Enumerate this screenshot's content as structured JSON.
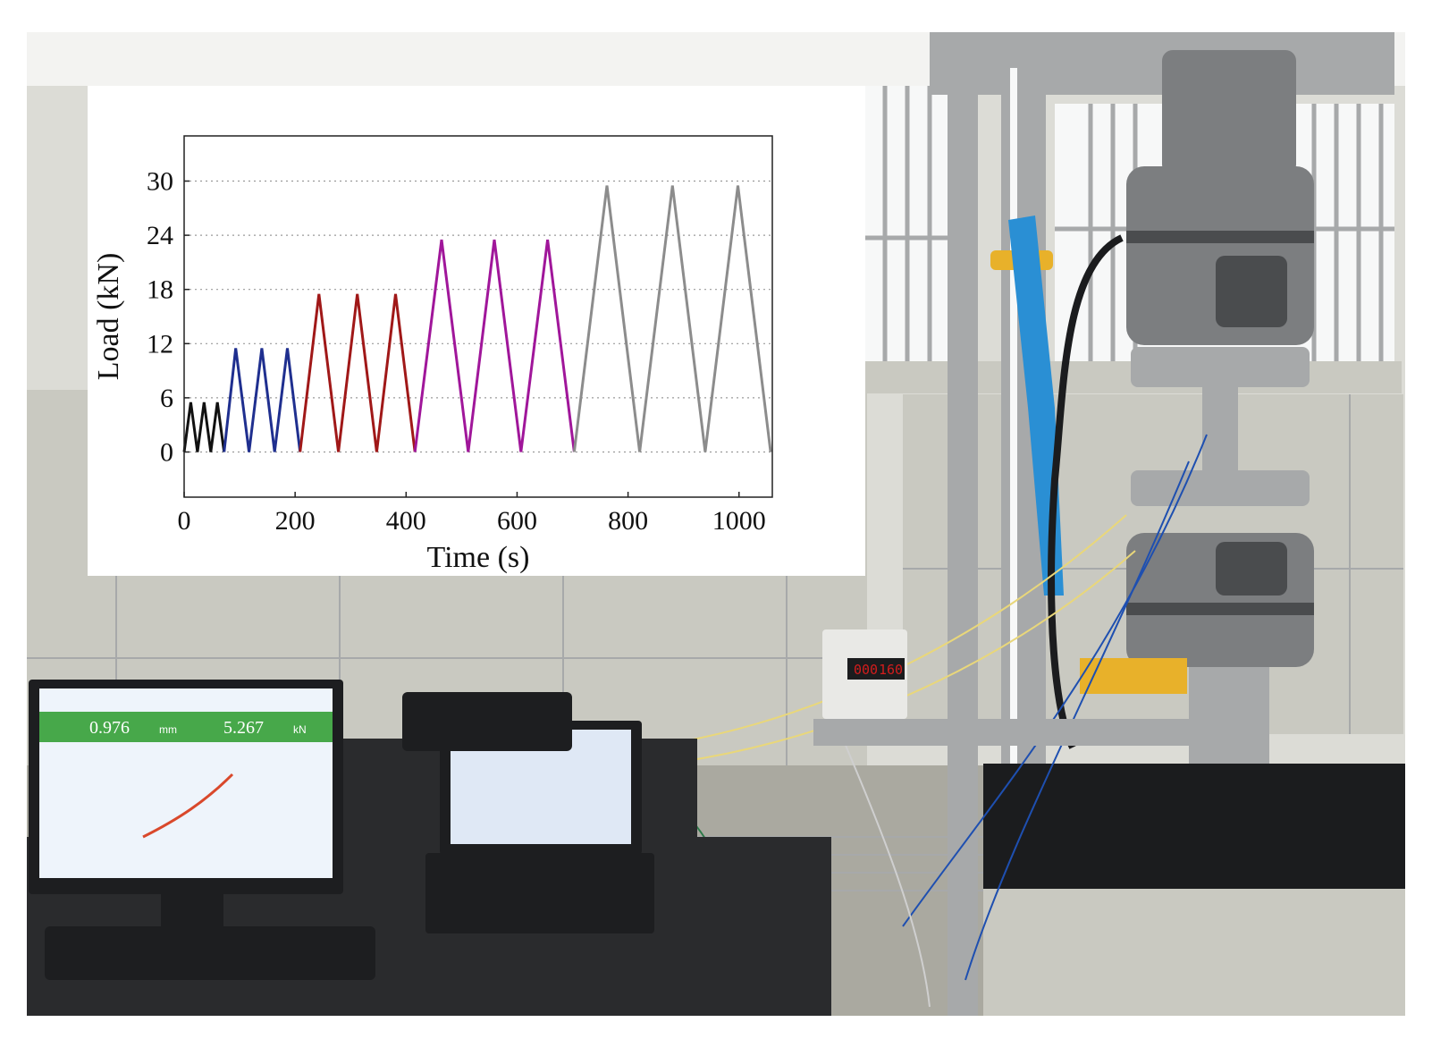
{
  "scene": {
    "ceiling_light": "#f3f3f1",
    "wall": "#dcdcd6",
    "window_glass": "#f7f8f8",
    "cabinet": "#c9c9c1",
    "floor": "#aaa9a0",
    "steel": "#a7a9aa",
    "dark_steel": "#4a4c4e",
    "grip_body": "#7c7e80",
    "crosshead_black": "#1b1c1e",
    "blue_ribbon": "#2a8fd4",
    "yellow_clamp": "#e8b12a",
    "monitor_frame": "#1d1e20",
    "monitor_screen": "#eef4fb",
    "monitor_header": "#47a84a",
    "laptop_screen": "#dfe8f5",
    "desk": "#2a2b2d",
    "psu_body": "#e9e9e6",
    "psu_display": "#d21c1c",
    "wires": [
      "#e9d77a",
      "#1e4fb0",
      "#2d7a4a",
      "#cfcfcf"
    ]
  },
  "screens": {
    "monitor_readout_left": "0.976",
    "monitor_readout_left_unit": "mm",
    "monitor_readout_right": "5.267",
    "monitor_readout_right_unit": "kN",
    "psu_readout": "000",
    "psu_readout_2": "160"
  },
  "chart_data": {
    "type": "line",
    "xlabel": "Time (s)",
    "ylabel": "Load (kN)",
    "xlim": [
      0,
      1060
    ],
    "ylim": [
      -5,
      35
    ],
    "xticks": [
      0,
      200,
      400,
      600,
      800,
      1000
    ],
    "yticks": [
      0,
      6,
      12,
      18,
      24,
      30
    ],
    "grid": "horizontal-dotted",
    "series": [
      {
        "color": "#111111",
        "x": [
          0,
          12,
          24,
          36,
          48,
          60,
          72
        ],
        "y": [
          0,
          5.5,
          0,
          5.5,
          0,
          5.5,
          0
        ]
      },
      {
        "color": "#1f2f8f",
        "x": [
          72,
          93,
          117,
          140,
          163,
          186,
          209
        ],
        "y": [
          0,
          11.5,
          0,
          11.5,
          0,
          11.5,
          0
        ]
      },
      {
        "color": "#a01818",
        "x": [
          209,
          243,
          278,
          312,
          347,
          381,
          416
        ],
        "y": [
          0,
          17.5,
          0,
          17.5,
          0,
          17.5,
          0
        ]
      },
      {
        "color": "#a0169a",
        "x": [
          416,
          464,
          512,
          559,
          607,
          655,
          703
        ],
        "y": [
          0,
          23.5,
          0,
          23.5,
          0,
          23.5,
          0
        ]
      },
      {
        "color": "#8c8c8c",
        "x": [
          703,
          762,
          821,
          880,
          939,
          998,
          1057
        ],
        "y": [
          0,
          29.5,
          0,
          29.5,
          0,
          29.5,
          0
        ]
      }
    ]
  }
}
